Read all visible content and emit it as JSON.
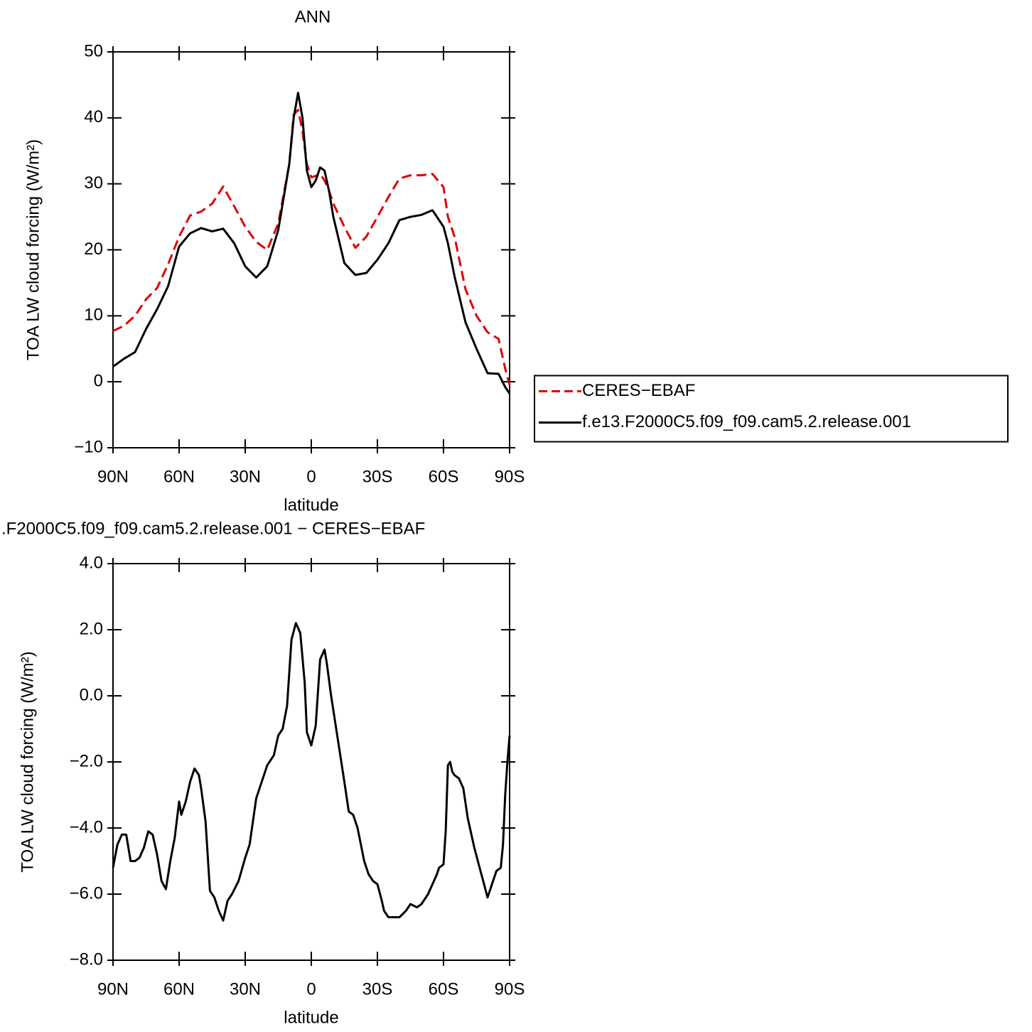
{
  "chart_data": [
    {
      "type": "line",
      "title": "ANN",
      "xlabel": "latitude",
      "ylabel": "TOA LW cloud forcing (W/m²)",
      "x": [
        90,
        85,
        80,
        75,
        70,
        65,
        60,
        55,
        50,
        45,
        40,
        35,
        30,
        25,
        20,
        15,
        10,
        8,
        6,
        4,
        2,
        0,
        -2,
        -4,
        -6,
        -8,
        -10,
        -15,
        -20,
        -25,
        -30,
        -35,
        -40,
        -45,
        -50,
        -55,
        -60,
        -62,
        -65,
        -70,
        -75,
        -80,
        -85,
        -88,
        -90
      ],
      "series": [
        {
          "name": "CERES−EBAF",
          "color": "#e00000",
          "linestyle": "dashed",
          "values": [
            7.7,
            8.5,
            10,
            12.5,
            14.2,
            17.8,
            22,
            25.2,
            25.8,
            27,
            29.6,
            26.6,
            23.5,
            21.2,
            20,
            24,
            33,
            40.5,
            41.2,
            38,
            33,
            31,
            31.2,
            31.5,
            30.5,
            29,
            27,
            23.5,
            20.3,
            22,
            25,
            28,
            30.8,
            31.3,
            31.3,
            31.5,
            29.5,
            25,
            22,
            14,
            10,
            7.5,
            6.5,
            2,
            -0.5
          ]
        },
        {
          "name": "f.e13.F2000C5.f09_f09.cam5.2.release.001",
          "color": "#000000",
          "linestyle": "solid",
          "values": [
            2.3,
            3.5,
            4.5,
            8,
            11,
            14.5,
            20.5,
            22.5,
            23.3,
            22.8,
            23.2,
            21,
            17.5,
            15.8,
            17.5,
            23,
            33,
            40,
            43.8,
            40,
            32,
            29.5,
            30.5,
            32.5,
            32,
            29,
            25,
            18,
            16.2,
            16.5,
            18.5,
            21,
            24.5,
            25,
            25.3,
            26,
            23.5,
            21,
            16,
            9,
            5,
            1.3,
            1.2,
            -0.8,
            -1.8
          ]
        }
      ],
      "xlim": [
        90,
        -90
      ],
      "xticks": [
        {
          "value": 90,
          "label": "90N"
        },
        {
          "value": 60,
          "label": "60N"
        },
        {
          "value": 30,
          "label": "30N"
        },
        0,
        {
          "value": -30,
          "label": "30S"
        },
        {
          "value": -60,
          "label": "60S"
        },
        {
          "value": -90,
          "label": "90S"
        }
      ],
      "ylim": [
        -10,
        50
      ],
      "yticks": [
        {
          "value": -10,
          "label": "−10"
        },
        0,
        10,
        20,
        30,
        40,
        50
      ],
      "legend": "right"
    },
    {
      "type": "line",
      "title": ".F2000C5.f09_f09.cam5.2.release.001 − CERES−EBAF",
      "xlabel": "latitude",
      "ylabel": "TOA LW cloud forcing (W/m²)",
      "x": [
        90,
        88,
        86,
        84,
        82,
        80,
        78,
        76,
        74,
        72,
        70,
        68,
        66,
        64,
        62,
        60,
        59,
        57,
        55,
        53,
        51,
        50,
        48,
        46,
        44,
        42,
        40,
        38,
        36,
        33,
        30,
        28,
        25,
        22,
        20,
        17,
        15,
        13,
        11,
        9,
        7,
        5,
        3,
        2,
        0,
        -2,
        -4,
        -6,
        -7,
        -9,
        -12,
        -15,
        -17,
        -19,
        -21,
        -24,
        -26,
        -28,
        -30,
        -32,
        -33,
        -35,
        -38,
        -40,
        -43,
        -45,
        -48,
        -50,
        -53,
        -55,
        -57,
        -58,
        -60,
        -61,
        -62,
        -63,
        -64,
        -65,
        -67,
        -69,
        -71,
        -72,
        -74,
        -76,
        -78,
        -80,
        -82,
        -84,
        -86,
        -87,
        -88,
        -89,
        -90
      ],
      "series": [
        {
          "color": "#000000",
          "linestyle": "solid",
          "values": [
            -5.2,
            -4.5,
            -4.2,
            -4.2,
            -5.0,
            -5.0,
            -4.9,
            -4.6,
            -4.1,
            -4.2,
            -4.8,
            -5.6,
            -5.85,
            -5.0,
            -4.3,
            -3.2,
            -3.6,
            -3.2,
            -2.6,
            -2.2,
            -2.4,
            -2.8,
            -3.8,
            -5.9,
            -6.1,
            -6.5,
            -6.8,
            -6.2,
            -6.0,
            -5.6,
            -4.9,
            -4.5,
            -3.1,
            -2.5,
            -2.1,
            -1.8,
            -1.2,
            -1.0,
            -0.3,
            1.7,
            2.2,
            1.9,
            0.4,
            -1.1,
            -1.5,
            -0.9,
            1.1,
            1.4,
            1.0,
            0,
            -1.3,
            -2.6,
            -3.5,
            -3.6,
            -4.0,
            -5.0,
            -5.4,
            -5.6,
            -5.7,
            -6.2,
            -6.5,
            -6.7,
            -6.7,
            -6.7,
            -6.5,
            -6.3,
            -6.4,
            -6.3,
            -6.0,
            -5.7,
            -5.4,
            -5.2,
            -5.1,
            -4.1,
            -2.1,
            -2.0,
            -2.3,
            -2.4,
            -2.5,
            -2.8,
            -3.7,
            -4.0,
            -4.6,
            -5.1,
            -5.6,
            -6.1,
            -5.7,
            -5.3,
            -5.2,
            -4.5,
            -3.0,
            -2.0,
            -1.2
          ]
        }
      ],
      "xlim": [
        90,
        -90
      ],
      "xticks": [
        {
          "value": 90,
          "label": "90N"
        },
        {
          "value": 60,
          "label": "60N"
        },
        {
          "value": 30,
          "label": "30N"
        },
        0,
        {
          "value": -30,
          "label": "30S"
        },
        {
          "value": -60,
          "label": "60S"
        },
        {
          "value": -90,
          "label": "90S"
        }
      ],
      "ylim": [
        -8,
        4
      ],
      "yticks": [
        {
          "value": -8,
          "label": "−8.0"
        },
        {
          "value": -6,
          "label": "−6.0"
        },
        {
          "value": -4,
          "label": "−4.0"
        },
        {
          "value": -2,
          "label": "−2.0"
        },
        {
          "value": 0,
          "label": "0.0"
        },
        {
          "value": 2,
          "label": "2.0"
        },
        {
          "value": 4,
          "label": "4.0"
        }
      ]
    }
  ]
}
